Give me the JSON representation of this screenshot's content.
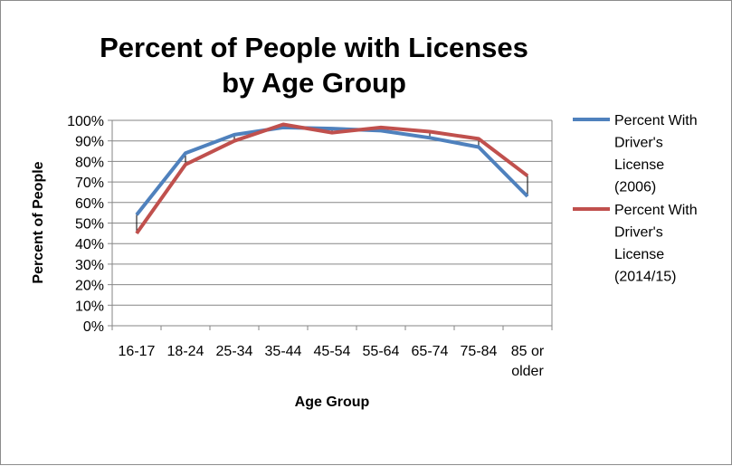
{
  "chart_data": {
    "type": "line",
    "title_lines": [
      "Percent of People with Licenses",
      "by Age Group"
    ],
    "xlabel": "Age Group",
    "ylabel": "Percent of People",
    "categories": [
      [
        "16-17"
      ],
      [
        "18-24"
      ],
      [
        "25-34"
      ],
      [
        "35-44"
      ],
      [
        "45-54"
      ],
      [
        "55-64"
      ],
      [
        "65-74"
      ],
      [
        "75-84"
      ],
      [
        "85 or",
        "older"
      ]
    ],
    "ylim": [
      0,
      100
    ],
    "y_ticks": [
      "0%",
      "10%",
      "20%",
      "30%",
      "40%",
      "50%",
      "60%",
      "70%",
      "80%",
      "90%",
      "100%"
    ],
    "grid": true,
    "high_low_lines": true,
    "legend_position": "right",
    "series": [
      {
        "name_lines": [
          "Percent With",
          "Driver's",
          "License",
          "(2006)"
        ],
        "color": "#4f81bd",
        "values": [
          54,
          84,
          93,
          96.5,
          96,
          95,
          91.5,
          87,
          63
        ]
      },
      {
        "name_lines": [
          "Percent With",
          "Driver's",
          "License",
          "(2014/15)"
        ],
        "color": "#c0504d",
        "values": [
          45,
          78.5,
          90,
          98,
          94,
          96.5,
          94.5,
          91,
          73
        ]
      }
    ]
  }
}
